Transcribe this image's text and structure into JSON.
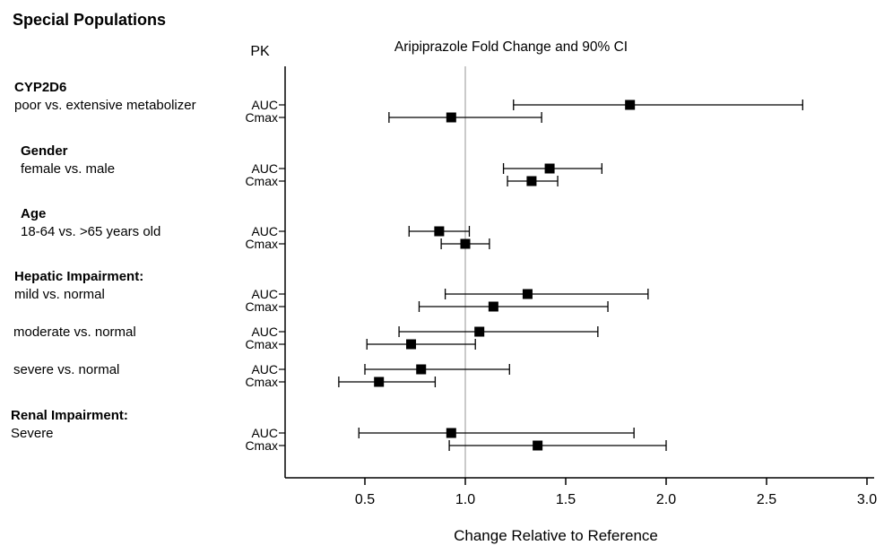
{
  "page_title": "Special Populations",
  "chart_data": {
    "type": "scatter",
    "variant": "forest-plot",
    "title": "Aripiprazole Fold Change and 90% CI",
    "pk_column_header": "PK",
    "xlabel": "Change Relative to Reference",
    "x_ticks": [
      "0.5",
      "1.0",
      "1.5",
      "2.0",
      "2.5",
      "3.0"
    ],
    "xlim": [
      0.1,
      3.05
    ],
    "reference_value": 1.0,
    "grid": false,
    "legend": "none",
    "groups": [
      {
        "label": "CYP2D6",
        "comparison": "poor vs. extensive metabolizer",
        "rows": [
          {
            "pk": "AUC",
            "estimate": 1.82,
            "ci90_low": 1.24,
            "ci90_high": 2.68
          },
          {
            "pk": "Cmax",
            "estimate": 0.93,
            "ci90_low": 0.62,
            "ci90_high": 1.38
          }
        ]
      },
      {
        "label": "Gender",
        "comparison": "female vs. male",
        "rows": [
          {
            "pk": "AUC",
            "estimate": 1.42,
            "ci90_low": 1.19,
            "ci90_high": 1.68
          },
          {
            "pk": "Cmax",
            "estimate": 1.33,
            "ci90_low": 1.21,
            "ci90_high": 1.46
          }
        ]
      },
      {
        "label": "Age",
        "comparison": "18-64 vs. >65 years old",
        "rows": [
          {
            "pk": "AUC",
            "estimate": 0.87,
            "ci90_low": 0.72,
            "ci90_high": 1.02
          },
          {
            "pk": "Cmax",
            "estimate": 1.0,
            "ci90_low": 0.88,
            "ci90_high": 1.12
          }
        ]
      },
      {
        "label": "Hepatic Impairment:",
        "comparison": "mild vs. normal",
        "rows": [
          {
            "pk": "AUC",
            "estimate": 1.31,
            "ci90_low": 0.9,
            "ci90_high": 1.91
          },
          {
            "pk": "Cmax",
            "estimate": 1.14,
            "ci90_low": 0.77,
            "ci90_high": 1.71
          }
        ]
      },
      {
        "label": "",
        "comparison": "moderate vs. normal",
        "rows": [
          {
            "pk": "AUC",
            "estimate": 1.07,
            "ci90_low": 0.67,
            "ci90_high": 1.66
          },
          {
            "pk": "Cmax",
            "estimate": 0.73,
            "ci90_low": 0.51,
            "ci90_high": 1.05
          }
        ]
      },
      {
        "label": "",
        "comparison": "severe vs. normal",
        "rows": [
          {
            "pk": "AUC",
            "estimate": 0.78,
            "ci90_low": 0.5,
            "ci90_high": 1.22
          },
          {
            "pk": "Cmax",
            "estimate": 0.57,
            "ci90_low": 0.37,
            "ci90_high": 0.85
          }
        ]
      },
      {
        "label": "Renal Impairment:",
        "comparison": "Severe",
        "rows": [
          {
            "pk": "AUC",
            "estimate": 0.93,
            "ci90_low": 0.47,
            "ci90_high": 1.84
          },
          {
            "pk": "Cmax",
            "estimate": 1.36,
            "ci90_low": 0.92,
            "ci90_high": 2.0
          }
        ]
      }
    ],
    "colors": {
      "marker": "#000000",
      "axis": "#000000",
      "reference_line": "#b8b8b8",
      "background": "#ffffff"
    }
  }
}
